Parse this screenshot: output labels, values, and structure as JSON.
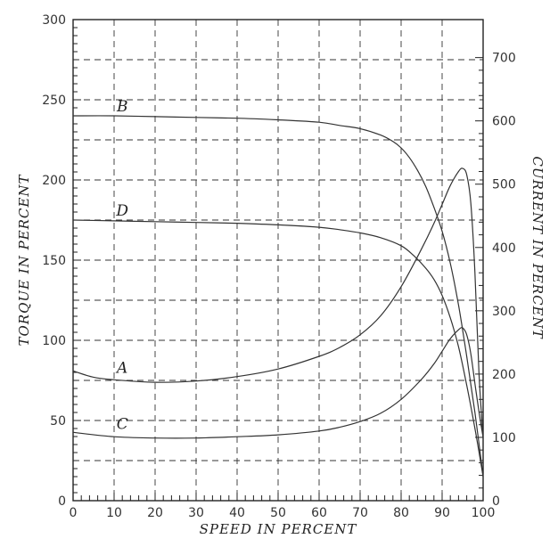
{
  "chart_data": {
    "type": "line",
    "xlabel": "SPEED IN PERCENT",
    "ylabel": "TORQUE IN PERCENT",
    "y2label": "CURRENT IN PERCENT",
    "xlim": [
      0,
      100
    ],
    "ylim": [
      0,
      300
    ],
    "y2lim": [
      0,
      760
    ],
    "x_ticks": [
      "0",
      "10",
      "20",
      "30",
      "40",
      "50",
      "60",
      "70",
      "80",
      "90",
      "100"
    ],
    "y_ticks": [
      "0",
      "50",
      "100",
      "150",
      "200",
      "250",
      "300"
    ],
    "y2_ticks": [
      "0",
      "100",
      "200",
      "300",
      "400",
      "500",
      "600",
      "700"
    ],
    "grid": true,
    "series": [
      {
        "name": "B",
        "axis": "torque",
        "x": [
          0,
          10,
          20,
          30,
          40,
          50,
          60,
          65,
          70,
          75,
          78,
          80,
          82,
          84,
          86,
          88,
          90,
          92,
          94,
          96,
          98,
          100
        ],
        "y": [
          240,
          240,
          239.5,
          239,
          238.5,
          237.5,
          236,
          234,
          232,
          228,
          224,
          220,
          214,
          206,
          196,
          183,
          168,
          148,
          122,
          90,
          55,
          15
        ]
      },
      {
        "name": "D",
        "axis": "torque",
        "x": [
          0,
          10,
          20,
          30,
          40,
          50,
          60,
          65,
          70,
          75,
          80,
          83,
          86,
          88,
          90,
          92,
          94,
          96,
          98,
          100
        ],
        "y": [
          175,
          174.5,
          174,
          173.5,
          173,
          172,
          170.5,
          169,
          167,
          164,
          159,
          153,
          145,
          138,
          128,
          114,
          96,
          72,
          45,
          15
        ]
      },
      {
        "name": "A",
        "axis": "current",
        "x": [
          0,
          5,
          10,
          20,
          30,
          40,
          50,
          60,
          65,
          70,
          75,
          80,
          85,
          88,
          90,
          92,
          94,
          95,
          96,
          97,
          98,
          99,
          100
        ],
        "y": [
          205,
          195,
          191,
          187,
          189,
          196,
          208,
          228,
          242,
          262,
          292,
          338,
          398,
          438,
          468,
          498,
          520,
          525,
          515,
          470,
          360,
          200,
          100
        ]
      },
      {
        "name": "C",
        "axis": "current",
        "x": [
          0,
          10,
          20,
          30,
          40,
          50,
          60,
          65,
          70,
          75,
          80,
          85,
          88,
          90,
          92,
          94,
          95,
          96,
          97,
          98,
          99,
          100
        ],
        "y": [
          108,
          101,
          99,
          99,
          101,
          104,
          110,
          116,
          125,
          138,
          160,
          192,
          216,
          236,
          256,
          270,
          273,
          262,
          232,
          185,
          140,
          100
        ]
      }
    ],
    "labels": [
      {
        "text": "B",
        "x": 12,
        "y": 245
      },
      {
        "text": "D",
        "x": 12,
        "y": 180
      },
      {
        "text": "A",
        "x": 12,
        "y": 82
      },
      {
        "text": "C",
        "x": 12,
        "y": 47
      }
    ]
  }
}
